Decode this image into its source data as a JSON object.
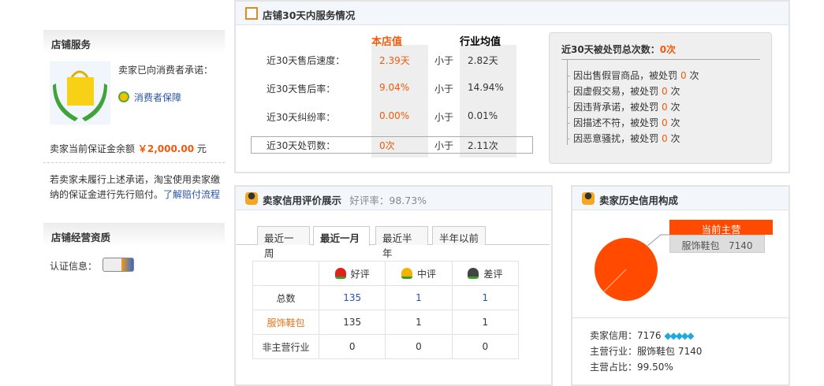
{
  "left": {
    "service_title": "店铺服务",
    "promise_text": "卖家已向消费者承诺：",
    "guarantee_link": "消费者保障",
    "deposit_label": "卖家当前保证金余额",
    "deposit_amount": "￥2,000.00",
    "deposit_unit": "元",
    "compensation_text": "若卖家未履行上述承诺，淘宝使用卖家缴纳的保证金进行先行赔付。",
    "compensation_link": "了解赔付流程",
    "qualification_title": "店铺经营资质",
    "cert_label": "认证信息："
  },
  "service": {
    "title": "店铺30天内服务情况",
    "col_store": "本店值",
    "col_industry": "行业均值",
    "rows": [
      {
        "label": "近30天售后速度：",
        "store": "2.39天",
        "cmp": "小于",
        "industry": "2.82天"
      },
      {
        "label": "近30天售后率：",
        "store": "9.04%",
        "cmp": "小于",
        "industry": "14.94%"
      },
      {
        "label": "近30天纠纷率：",
        "store": "0.00%",
        "cmp": "小于",
        "industry": "0.01%"
      },
      {
        "label": "近30天处罚数：",
        "store": "0次",
        "cmp": "小于",
        "industry": "2.11次"
      }
    ],
    "penalty_title": "近30天被处罚总次数：",
    "penalty_total": "0次",
    "penalties": [
      {
        "reason": "因出售假冒商品，被处罚",
        "count": "0",
        "unit": "次"
      },
      {
        "reason": "因虚假交易，被处罚",
        "count": "0",
        "unit": "次"
      },
      {
        "reason": "因违背承诺，被处罚",
        "count": "0",
        "unit": "次"
      },
      {
        "reason": "因描述不符，被处罚",
        "count": "0",
        "unit": "次"
      },
      {
        "reason": "因恶意骚扰，被处罚",
        "count": "0",
        "unit": "次"
      }
    ]
  },
  "credit": {
    "title": "卖家信用评价展示",
    "rate_label": "好评率：98.73%",
    "tabs": [
      "最近一周",
      "最近一月",
      "最近半年",
      "半年以前"
    ],
    "active_tab": "最近一月",
    "headers": [
      "好评",
      "中评",
      "差评"
    ],
    "rows": [
      {
        "label": "总数",
        "values": [
          "135",
          "1",
          "1"
        ]
      },
      {
        "label": "服饰鞋包",
        "values": [
          "135",
          "1",
          "1"
        ]
      },
      {
        "label": "非主营行业",
        "values": [
          "0",
          "0",
          "0"
        ]
      }
    ]
  },
  "history": {
    "title": "卖家历史信用构成",
    "tag": "当前主营",
    "category_label": "服饰鞋包   7140",
    "credit_line": "卖家信用：7176",
    "industry_line": "主营行业：服饰鞋包 7140",
    "ratio_line": "主营占比：99.50%",
    "pie_color": "#ff4a00",
    "main_share": 99.5
  }
}
